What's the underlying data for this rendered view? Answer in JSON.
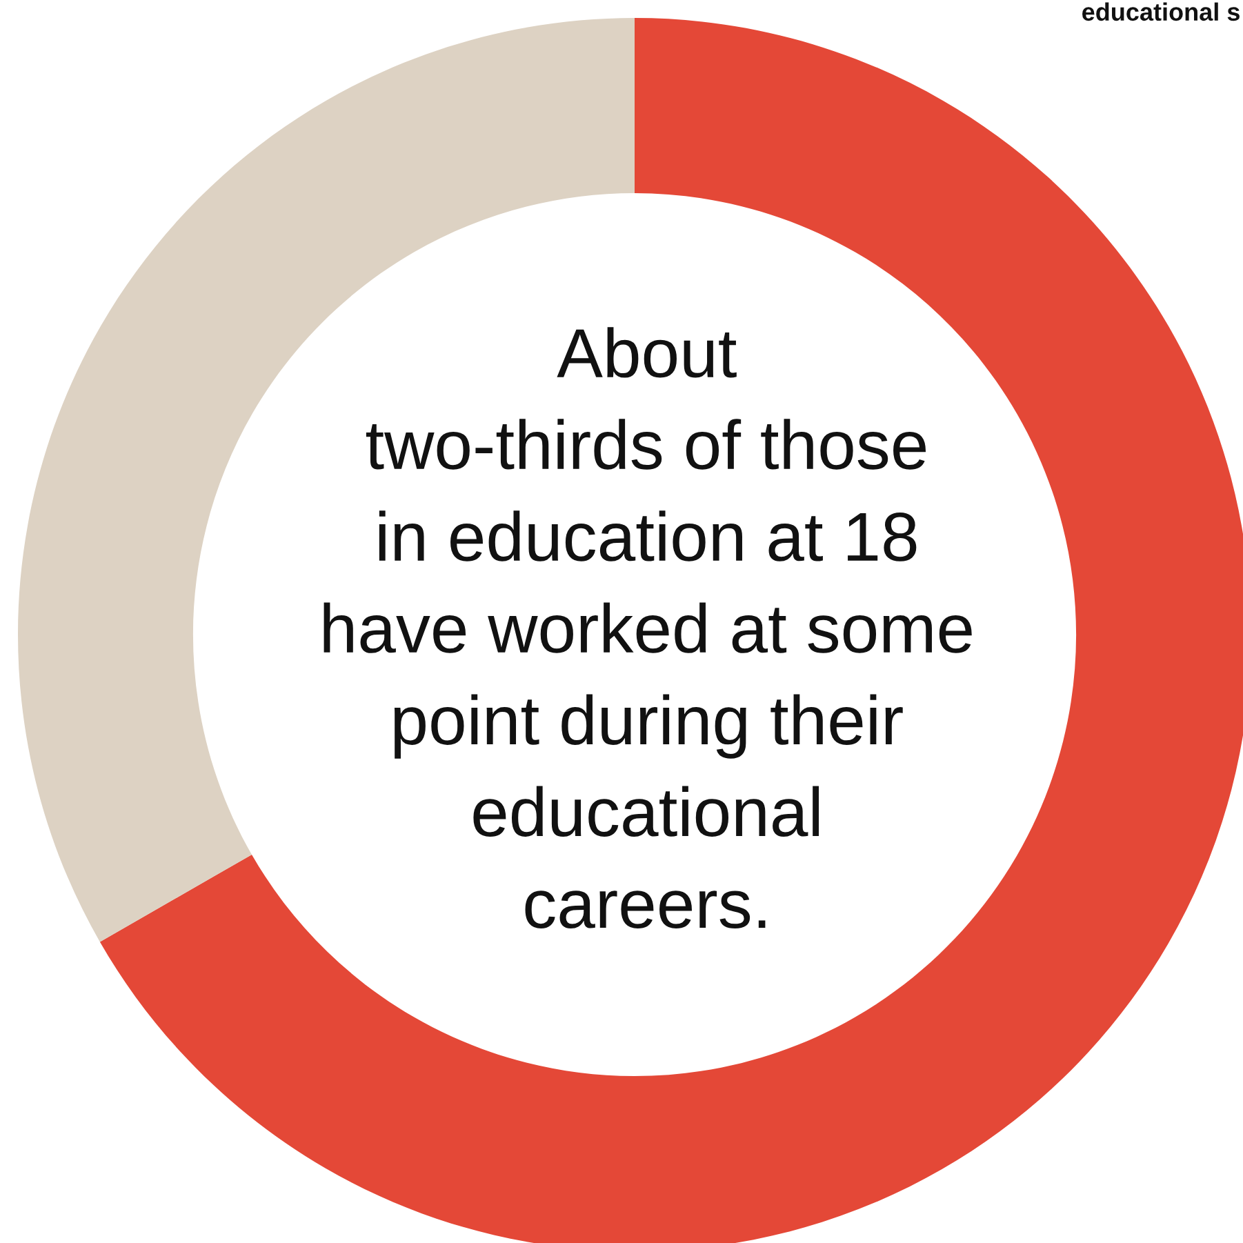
{
  "chart_data": {
    "type": "donut",
    "categories": [
      null,
      null
    ],
    "values": [
      66.7,
      33.3
    ],
    "colors": [
      "#e44837",
      "#ddd2c3"
    ],
    "annotations": [
      "About\ntwo-thirds of those\nin education at 18\nhave worked at some\npoint during their\neducational\ncareers.",
      "educational s"
    ]
  }
}
